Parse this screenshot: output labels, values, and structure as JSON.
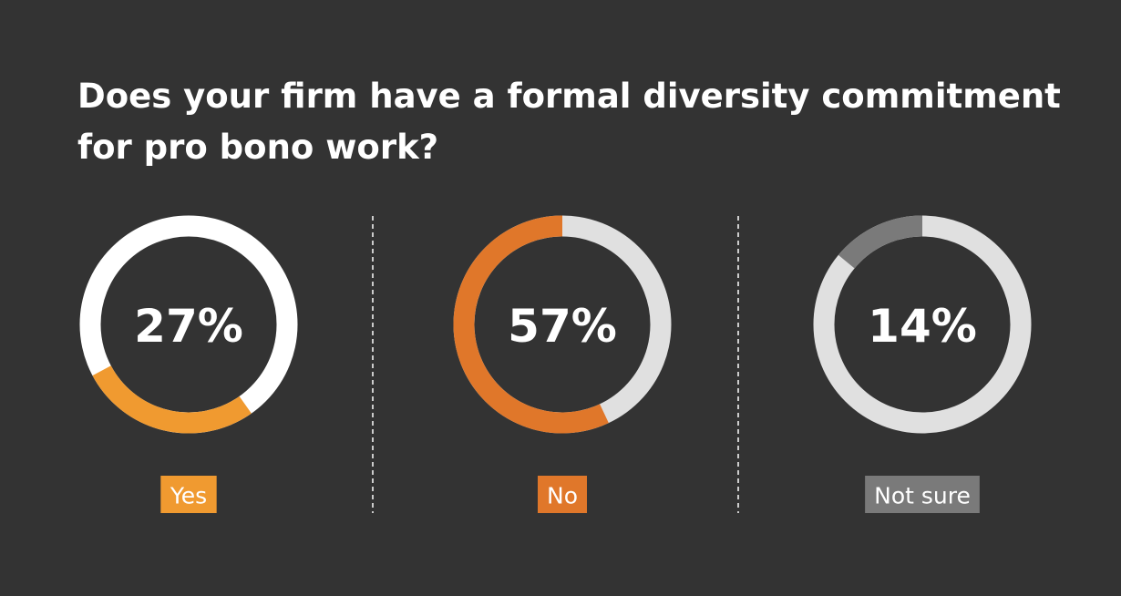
{
  "title": "Does your firm have a formal diversity commitment for pro bono work?",
  "chart_data": [
    {
      "type": "donut",
      "categories": [
        "Yes"
      ],
      "values": [
        27
      ],
      "value_labels": [
        "27%"
      ],
      "color": "#f09a30",
      "track_color": "#ffffff"
    },
    {
      "type": "donut",
      "categories": [
        "No"
      ],
      "values": [
        57
      ],
      "value_labels": [
        "57%"
      ],
      "color": "#e0772a",
      "track_color": "#e0e0e0"
    },
    {
      "type": "donut",
      "categories": [
        "Not sure"
      ],
      "values": [
        14
      ],
      "value_labels": [
        "14%"
      ],
      "color": "#7a7a7a",
      "track_color": "#e0e0e0"
    }
  ]
}
